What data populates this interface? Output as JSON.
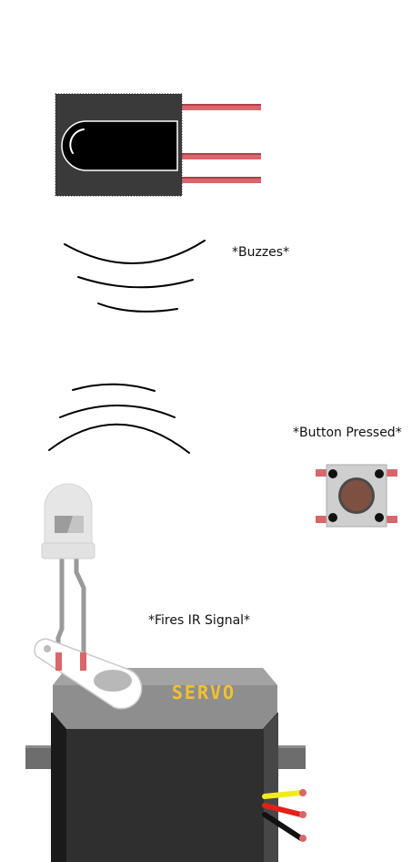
{
  "captions": {
    "buzzes": "*Buzzes*",
    "button_pressed": "*Button Pressed*",
    "fires_ir_signal": "*Fires IR Signal*"
  },
  "servo": {
    "label": "SERVO"
  },
  "components": {
    "ir_receiver_icon": "ir-receiver-icon",
    "push_button_icon": "push-button-icon",
    "ir_led_icon": "ir-led-icon",
    "servo_icon": "servo-motor-icon"
  },
  "colors": {
    "pin": "#d9666a",
    "receiver_body": "#3a3a3a",
    "button_cap": "#7d5041",
    "servo_label": "#f2c12e",
    "wire_signal": "#f2ea1c",
    "wire_power": "#e3201b",
    "wire_ground": "#111111"
  }
}
